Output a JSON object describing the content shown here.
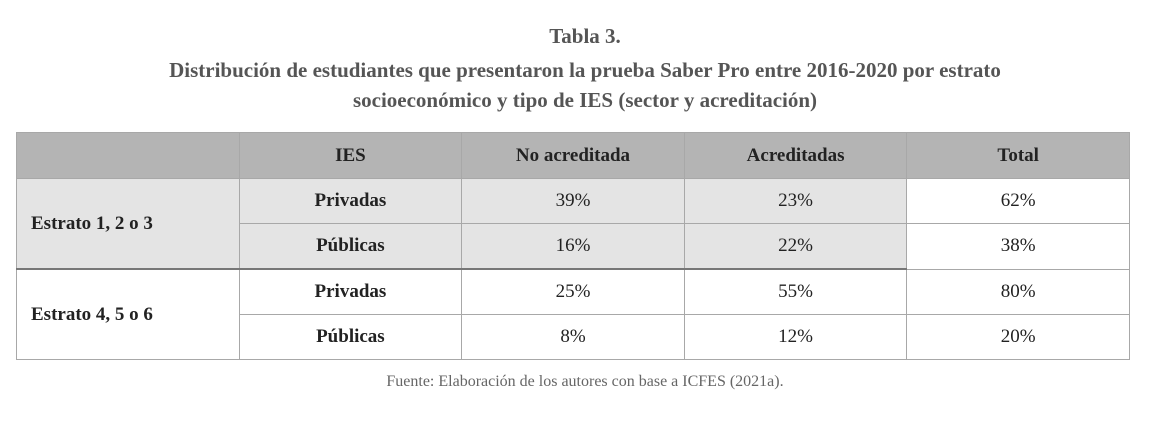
{
  "header": {
    "title": "Tabla 3.",
    "subtitle_lines": [
      "Distribución de estudiantes que presentaron la prueba Saber Pro entre 2016-2020 por estrato",
      "socioeconómico y tipo de IES (sector y acreditación)"
    ]
  },
  "table": {
    "columns": [
      "IES",
      "No acreditada",
      "Acreditadas",
      "Total"
    ],
    "groups": [
      {
        "label": "Estrato 1, 2 o 3",
        "rows": [
          {
            "ies": "Privadas",
            "cells": [
              "39%",
              "23%",
              "62%"
            ]
          },
          {
            "ies": "Públicas",
            "cells": [
              "16%",
              "22%",
              "38%"
            ]
          }
        ]
      },
      {
        "label": "Estrato 4, 5 o 6",
        "rows": [
          {
            "ies": "Privadas",
            "cells": [
              "25%",
              "55%",
              "80%"
            ]
          },
          {
            "ies": "Públicas",
            "cells": [
              "8%",
              "12%",
              "20%"
            ]
          }
        ]
      }
    ]
  },
  "footer": {
    "source": "Fuente: Elaboración de los autores con base a ICFES (2021a)."
  }
}
